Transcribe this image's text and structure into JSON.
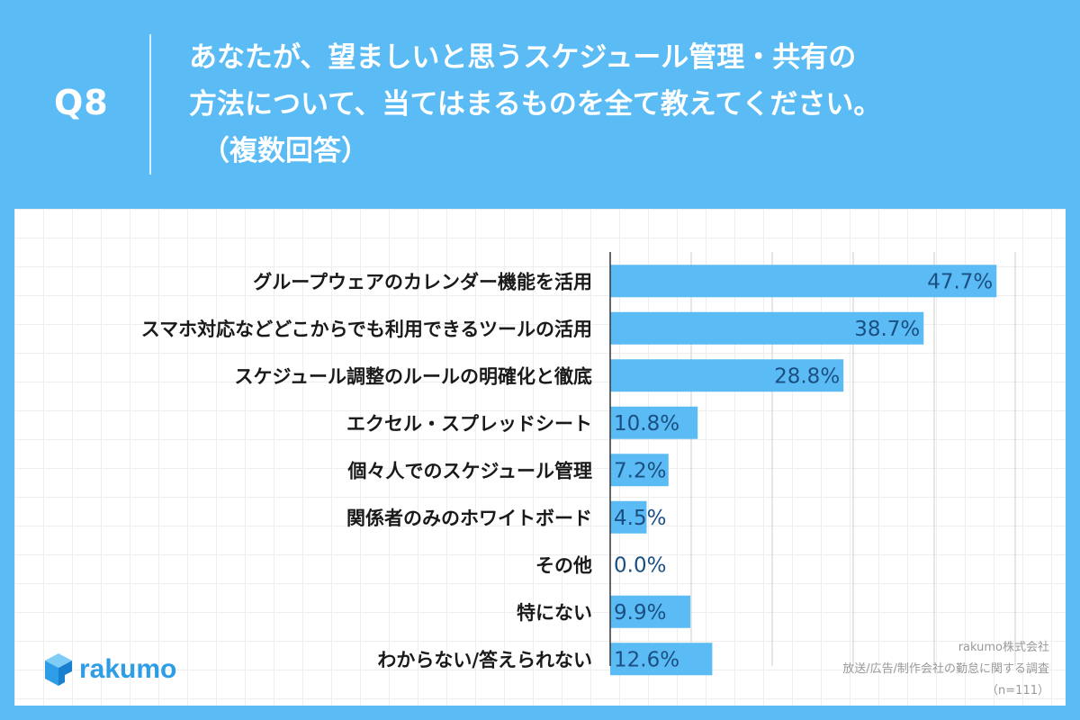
{
  "header": {
    "question_number": "Q8",
    "title_lines": [
      "あなたが、望ましいと思うスケジュール管理・共有の",
      "方法について、当てはまるものを全て教えてください。",
      "（複数回答）"
    ]
  },
  "chart_data": {
    "type": "bar",
    "orientation": "horizontal",
    "categories": [
      "グループウェアのカレンダー機能を活用",
      "スマホ対応などどこからでも利用できるツールの活用",
      "スケジュール調整のルールの明確化と徹底",
      "エクセル・スプレッドシート",
      "個々人でのスケジュール管理",
      "関係者のみのホワイトボード",
      "その他",
      "特にない",
      "わからない/答えられない"
    ],
    "values": [
      47.7,
      38.7,
      28.8,
      10.8,
      7.2,
      4.5,
      0.0,
      9.9,
      12.6
    ],
    "value_labels": [
      "47.7%",
      "38.7%",
      "28.8%",
      "10.8%",
      "7.2%",
      "4.5%",
      "0.0%",
      "9.9%",
      "12.6%"
    ],
    "xlim": [
      0,
      50
    ],
    "grid": true,
    "bar_color": "#5bbcf5"
  },
  "footer": {
    "logo_text": "rakumo",
    "source_lines": [
      "rakumo株式会社",
      "放送/広告/制作会社の勤怠に関する調査",
      "（n=111）"
    ]
  },
  "colors": {
    "background": "#5bbcf5",
    "panel": "#ffffff",
    "bar": "#5bbcf5",
    "value_text": "#1b4f82"
  }
}
